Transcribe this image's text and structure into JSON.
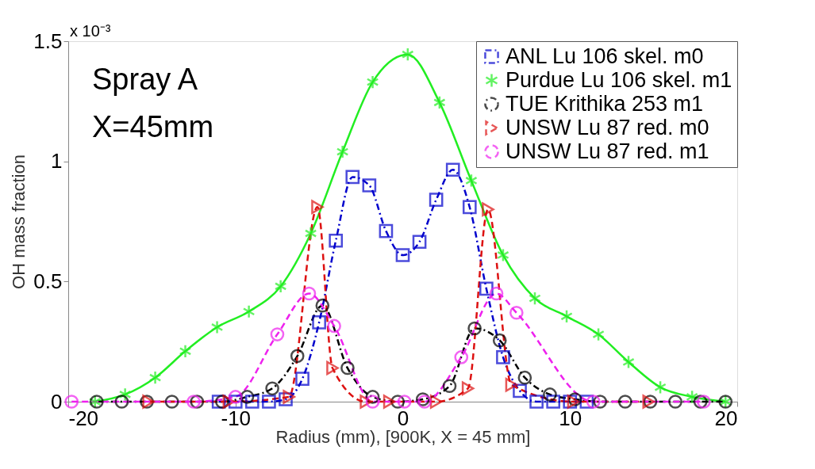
{
  "chart_data": {
    "type": "line",
    "xlabel": "Radius (mm), [900K, X = 45 mm]",
    "ylabel": "OH mass fraction",
    "annotations": [
      "Spray A",
      "X=45mm",
      "x 10⁻³"
    ],
    "xlim": [
      -20,
      20
    ],
    "xticks": [
      -20,
      -10,
      0,
      10,
      20
    ],
    "ylim": [
      0,
      1.5
    ],
    "yticks": [
      0,
      0.5,
      1,
      1.5
    ],
    "grid": false,
    "legend": "top right",
    "series": [
      {
        "name": "ANL Lu 106 skel. m0",
        "color": "#0000cc",
        "marker": "square",
        "line_style": "dashdot",
        "x": [
          -11,
          -10,
          -9,
          -8,
          -7,
          -6,
          -5,
          -4,
          -3,
          -2,
          -1,
          0,
          1,
          2,
          3,
          4,
          5,
          6,
          7,
          8,
          9,
          10,
          11
        ],
        "values": [
          0,
          0,
          0,
          0,
          0.01,
          0.095,
          0.33,
          0.67,
          0.935,
          0.9,
          0.71,
          0.61,
          0.665,
          0.84,
          0.965,
          0.81,
          0.47,
          0.185,
          0.045,
          0,
          0,
          0,
          0
        ]
      },
      {
        "name": "Purdue Lu 106 skel. m1",
        "color": "#22ee22",
        "marker": "cross",
        "line_style": "solid",
        "x": [
          -18.4,
          -16.6,
          -14.8,
          -13.0,
          -11.1,
          -9.2,
          -7.3,
          -5.5,
          -3.6,
          -1.8,
          0.3,
          2.2,
          4.1,
          6.0,
          7.9,
          9.8,
          11.7,
          13.5,
          15.4,
          17.3,
          19.3
        ],
        "values": [
          0,
          0.03,
          0.1,
          0.21,
          0.31,
          0.375,
          0.48,
          0.7,
          1.04,
          1.33,
          1.445,
          1.245,
          0.92,
          0.61,
          0.43,
          0.355,
          0.28,
          0.165,
          0.06,
          0.02,
          0
        ]
      },
      {
        "name": "TUE Krithika 253 m1",
        "color": "#000000",
        "marker": "circle",
        "line_style": "dashdot",
        "x": [
          -18.3,
          -16.8,
          -15.3,
          -13.8,
          -12.3,
          -10.8,
          -9.3,
          -7.8,
          -6.3,
          -4.8,
          -3.3,
          -1.8,
          -0.3,
          1.2,
          2.8,
          4.3,
          5.8,
          7.3,
          8.8,
          10.3,
          11.8,
          13.3,
          14.8,
          16.3,
          17.8,
          19.3
        ],
        "values": [
          0,
          0,
          0,
          0,
          0,
          0,
          0.02,
          0.055,
          0.19,
          0.4,
          0.14,
          0.02,
          0,
          0.01,
          0.065,
          0.305,
          0.255,
          0.1,
          0.03,
          0.01,
          0,
          0,
          0,
          0,
          0,
          0
        ]
      },
      {
        "name": "UNSW Lu 87 red. m0",
        "color": "#dd1111",
        "marker": "triangle",
        "line_style": "dashed",
        "x": [
          -15.2,
          -10.4,
          -6.8,
          -5.1,
          -4.2,
          -2.2,
          -0.8,
          2.0,
          3.9,
          5.1,
          6.5,
          10.2,
          14.7
        ],
        "values": [
          0,
          0,
          0.02,
          0.81,
          0.14,
          0,
          0,
          0,
          0.055,
          0.8,
          0.07,
          0,
          0
        ]
      },
      {
        "name": "UNSW Lu 87 red. m1",
        "color": "#ee22ee",
        "marker": "circle",
        "line_style": "dashed",
        "x": [
          -19.8,
          -12.5,
          -10.0,
          -7.5,
          -5.6,
          -4.1,
          -1.8,
          0.1,
          1.3,
          3.5,
          5.6,
          6.8,
          11.4,
          18.0
        ],
        "values": [
          0,
          0,
          0.02,
          0.28,
          0.45,
          0.315,
          0,
          0,
          0,
          0.185,
          0.45,
          0.37,
          0,
          0
        ]
      }
    ]
  }
}
